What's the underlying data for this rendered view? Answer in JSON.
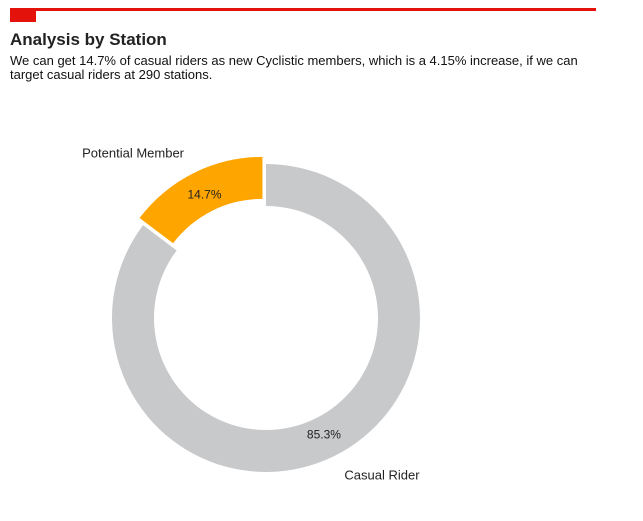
{
  "header": {
    "title": "Analysis by Station",
    "subtitle": "We can get 14.7% of casual riders as new Cyclistic members, which is a 4.15% increase, if we can target casual riders at 290 stations."
  },
  "colors": {
    "accent": "#e3120b",
    "casual": "#c8c9cb",
    "potential": "#ffa500"
  },
  "chart_data": {
    "type": "pie",
    "style": "donut",
    "title": "",
    "legend": "none",
    "slices": [
      {
        "label": "Potential Member",
        "value": 14.7,
        "value_label": "14.7%",
        "color": "#ffa500",
        "exploded": true
      },
      {
        "label": "Casual Rider",
        "value": 85.3,
        "value_label": "85.3%",
        "color": "#c8c9cb",
        "exploded": false
      }
    ]
  }
}
